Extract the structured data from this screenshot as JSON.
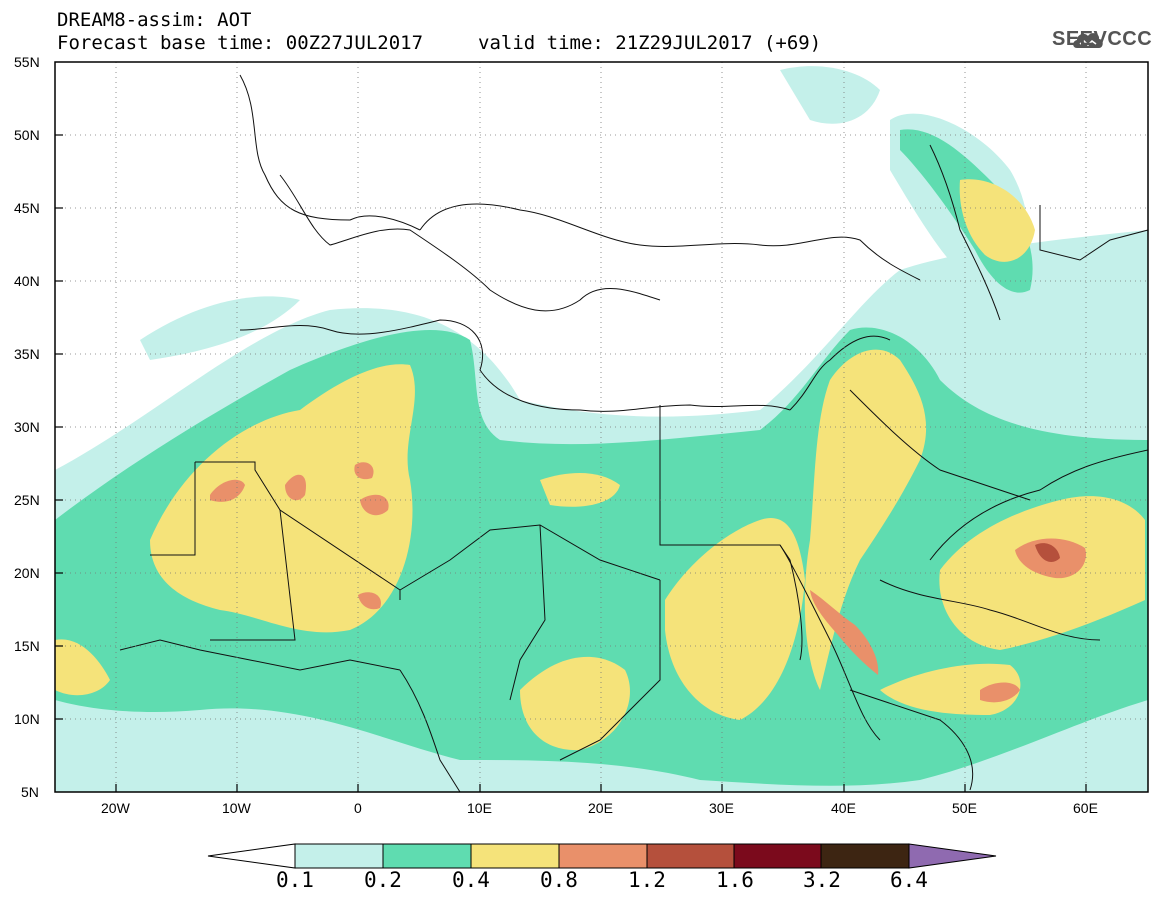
{
  "header": {
    "line1": "DREAM8-assim: AOT",
    "line2": "Forecast base time: 00Z27JUL2017",
    "valid": "valid time: 21Z29JUL2017 (+69)"
  },
  "logo": {
    "text": "SEEVCCC",
    "icon": "cloud-icon"
  },
  "map": {
    "lon_range": [
      -25,
      65
    ],
    "lat_range": [
      5,
      55
    ],
    "lat_ticks": [
      "55N",
      "50N",
      "45N",
      "40N",
      "35N",
      "30N",
      "25N",
      "20N",
      "15N",
      "10N",
      "5N"
    ],
    "lon_ticks": [
      "20W",
      "10W",
      "0",
      "10E",
      "20E",
      "30E",
      "40E",
      "50E",
      "60E"
    ],
    "grid": "dotted"
  },
  "colorbar": {
    "labels": [
      "0.1",
      "0.2",
      "0.4",
      "0.8",
      "1.2",
      "1.6",
      "3.2",
      "6.4"
    ],
    "colors": [
      "#ffffff",
      "#c4f0ea",
      "#5fdcb0",
      "#f5e37a",
      "#e9906a",
      "#b5503c",
      "#7b0a1c",
      "#3d2512",
      "#8f6ab0"
    ]
  }
}
